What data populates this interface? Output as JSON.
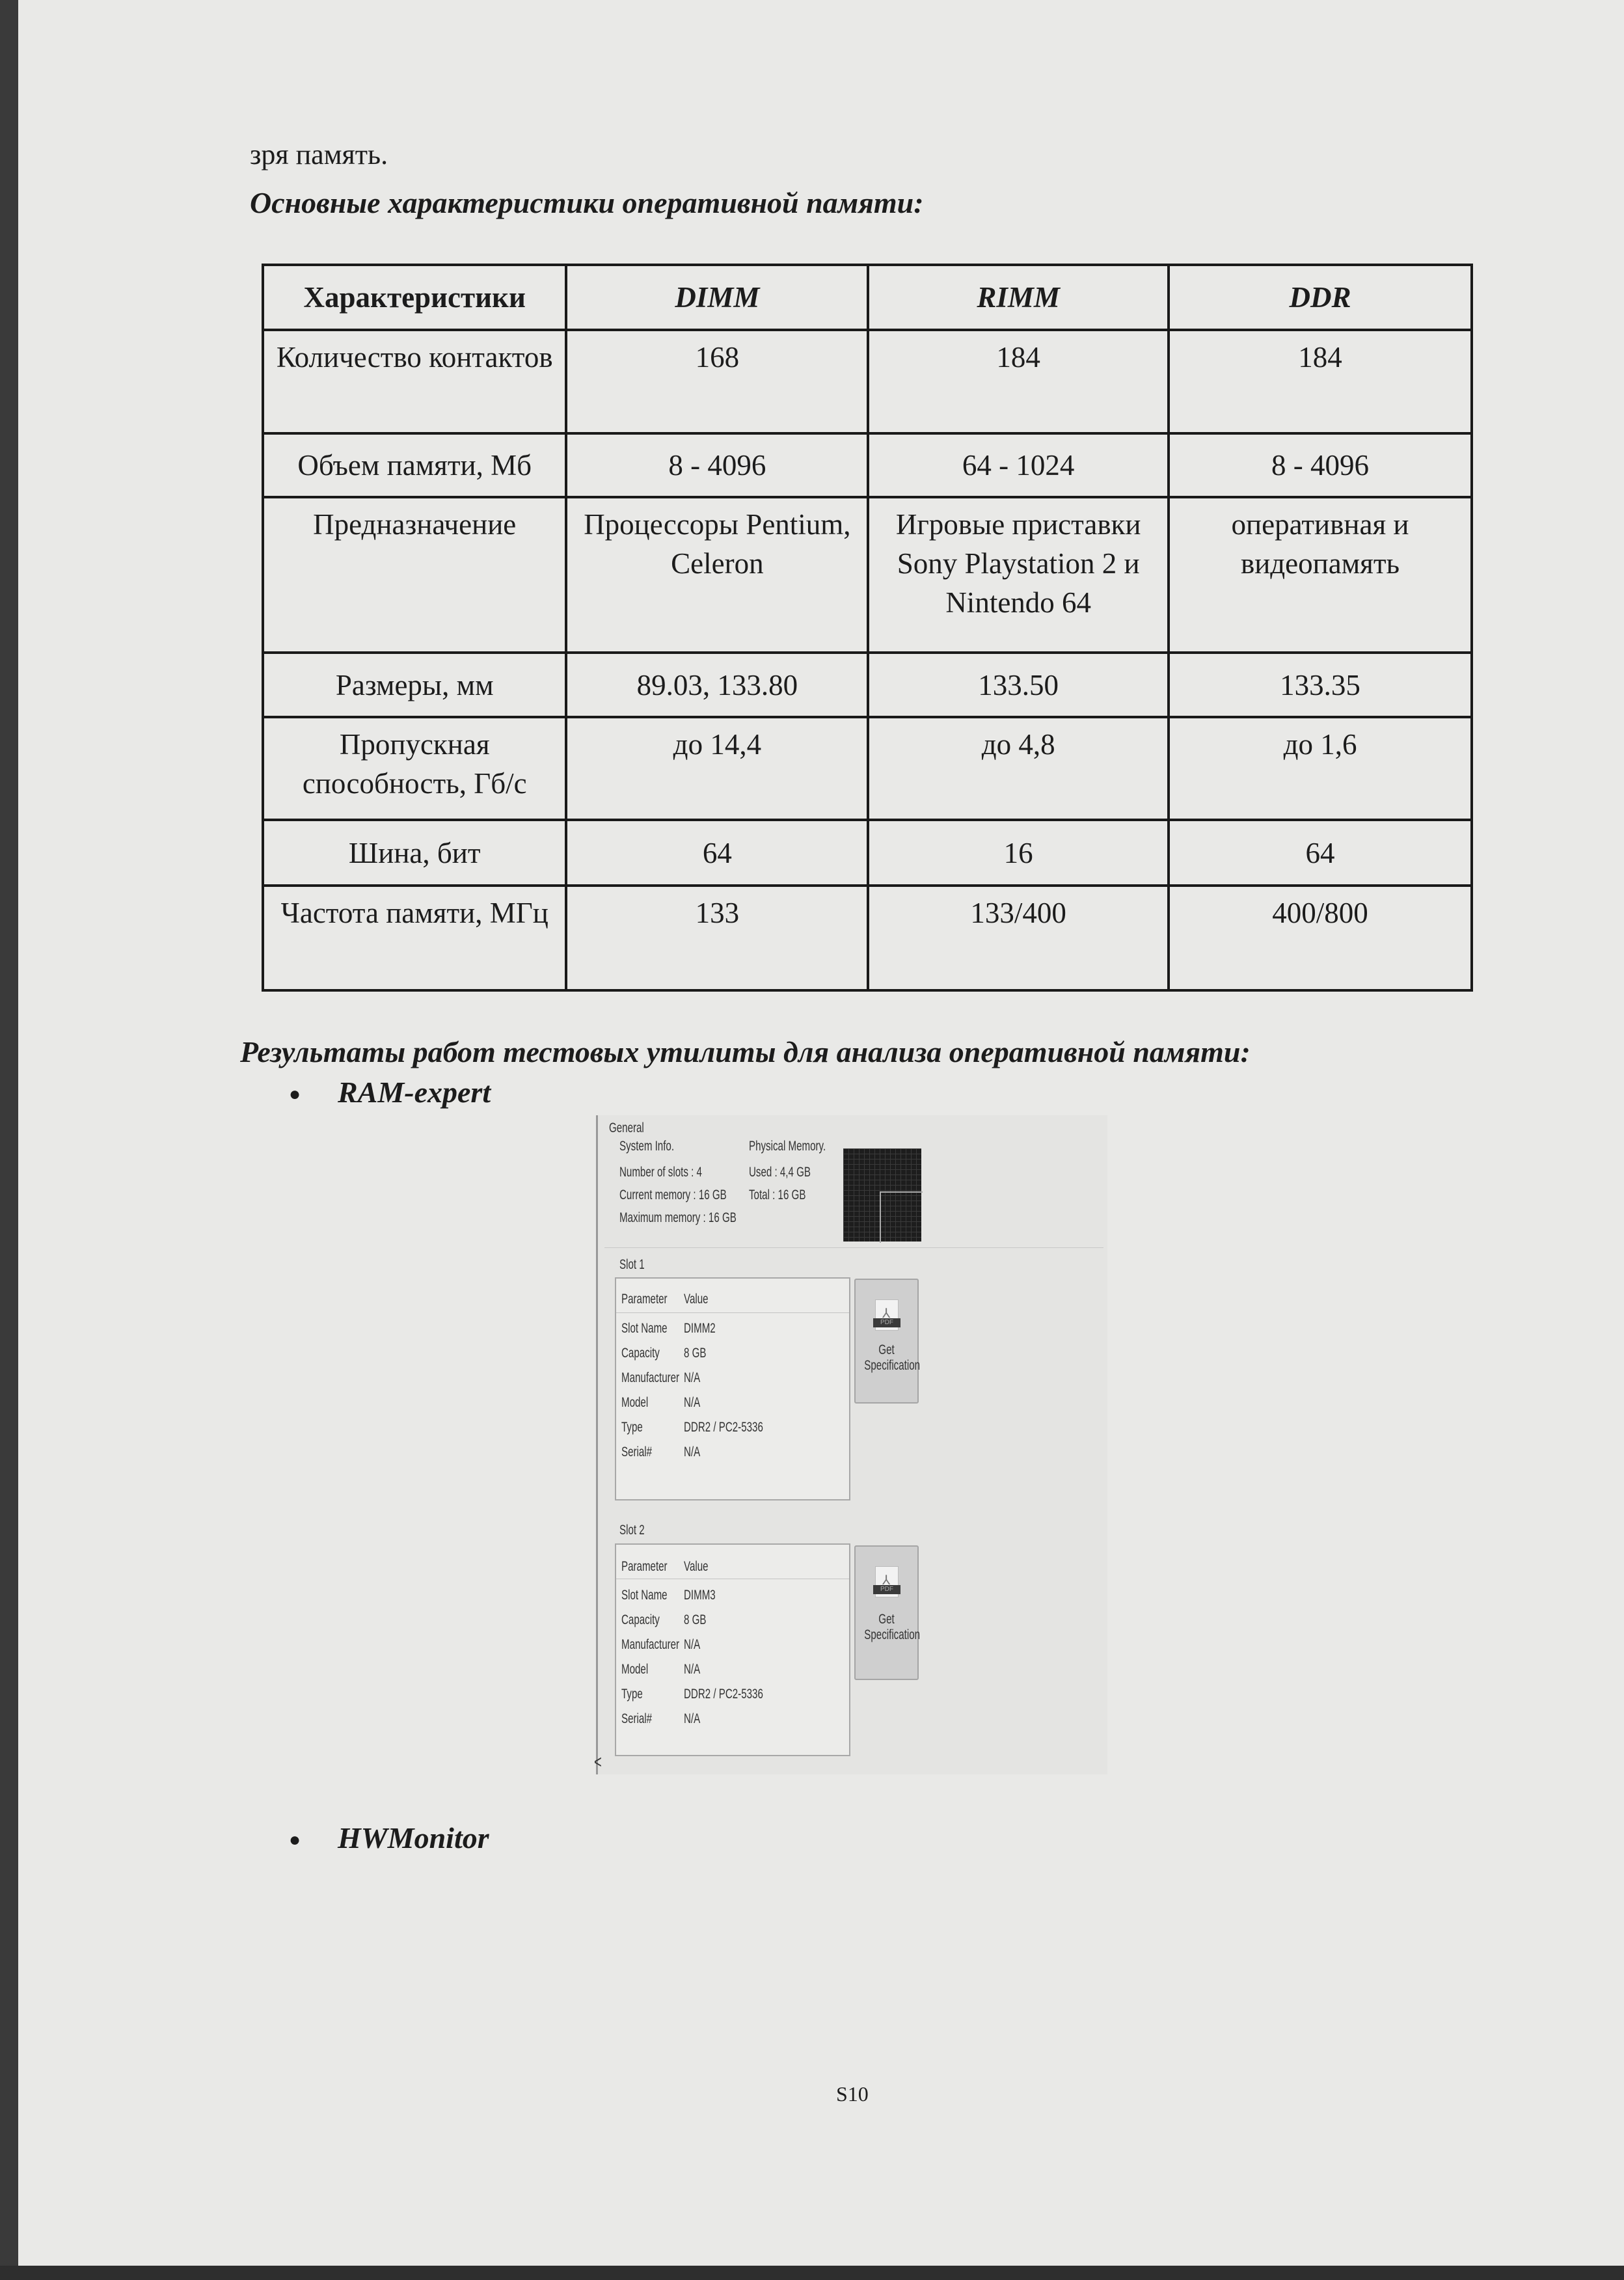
{
  "intro_text": "зря память.",
  "table_heading": "Основные характеристики оперативной памяти:",
  "table": {
    "headers": [
      "Характеристики",
      "DIMM",
      "RIMM",
      "DDR"
    ],
    "rows": [
      [
        "Количество контактов",
        "168",
        "184",
        "184"
      ],
      [
        "Объем памяти, Мб",
        "8 - 4096",
        "64 - 1024",
        "8 - 4096"
      ],
      [
        "Предназначение",
        "Процессоры Pentium, Celeron",
        "Игровые приставки Sony Playstation 2 и Nintendo 64",
        "оперативная и видеопамять"
      ],
      [
        "Размеры, мм",
        "89.03, 133.80",
        "133.50",
        "133.35"
      ],
      [
        "Пропускная способность, Гб/с",
        "до 14,4",
        "до 4,8",
        "до 1,6"
      ],
      [
        "Шина, бит",
        "64",
        "16",
        "64"
      ],
      [
        "Частота памяти, МГц",
        "133",
        "133/400",
        "400/800"
      ]
    ]
  },
  "results_heading": "Результаты работ тестовых утилиты для анализа оперативной памяти:",
  "bullets": [
    "RAM-expert",
    "HWMonitor"
  ],
  "ram_expert": {
    "group_general": "General",
    "system_info_label": "System Info.",
    "physical_memory_label": "Physical Memory.",
    "number_of_slots": "Number of slots : 4",
    "current_memory": "Current memory : 16 GB",
    "maximum_memory": "Maximum memory : 16 GB",
    "used": "Used : 4,4 GB",
    "total": "Total : 16 GB",
    "col_parameter": "Parameter",
    "col_value": "Value",
    "pdf_badge": "PDF",
    "button_label_1": "Get",
    "button_label_2": "Specification",
    "scroll_arrow": "<",
    "slots": [
      {
        "label": "Slot 1",
        "rows": [
          [
            "Slot Name",
            "DIMM2"
          ],
          [
            "Capacity",
            "8 GB"
          ],
          [
            "Manufacturer",
            "N/A"
          ],
          [
            "Model",
            "N/A"
          ],
          [
            "Type",
            "DDR2 / PC2-5336"
          ],
          [
            "Serial#",
            "N/A"
          ]
        ]
      },
      {
        "label": "Slot 2",
        "rows": [
          [
            "Slot Name",
            "DIMM3"
          ],
          [
            "Capacity",
            "8 GB"
          ],
          [
            "Manufacturer",
            "N/A"
          ],
          [
            "Model",
            "N/A"
          ],
          [
            "Type",
            "DDR2 / PC2-5336"
          ],
          [
            "Serial#",
            "N/A"
          ]
        ]
      }
    ]
  },
  "page_number": "S10"
}
